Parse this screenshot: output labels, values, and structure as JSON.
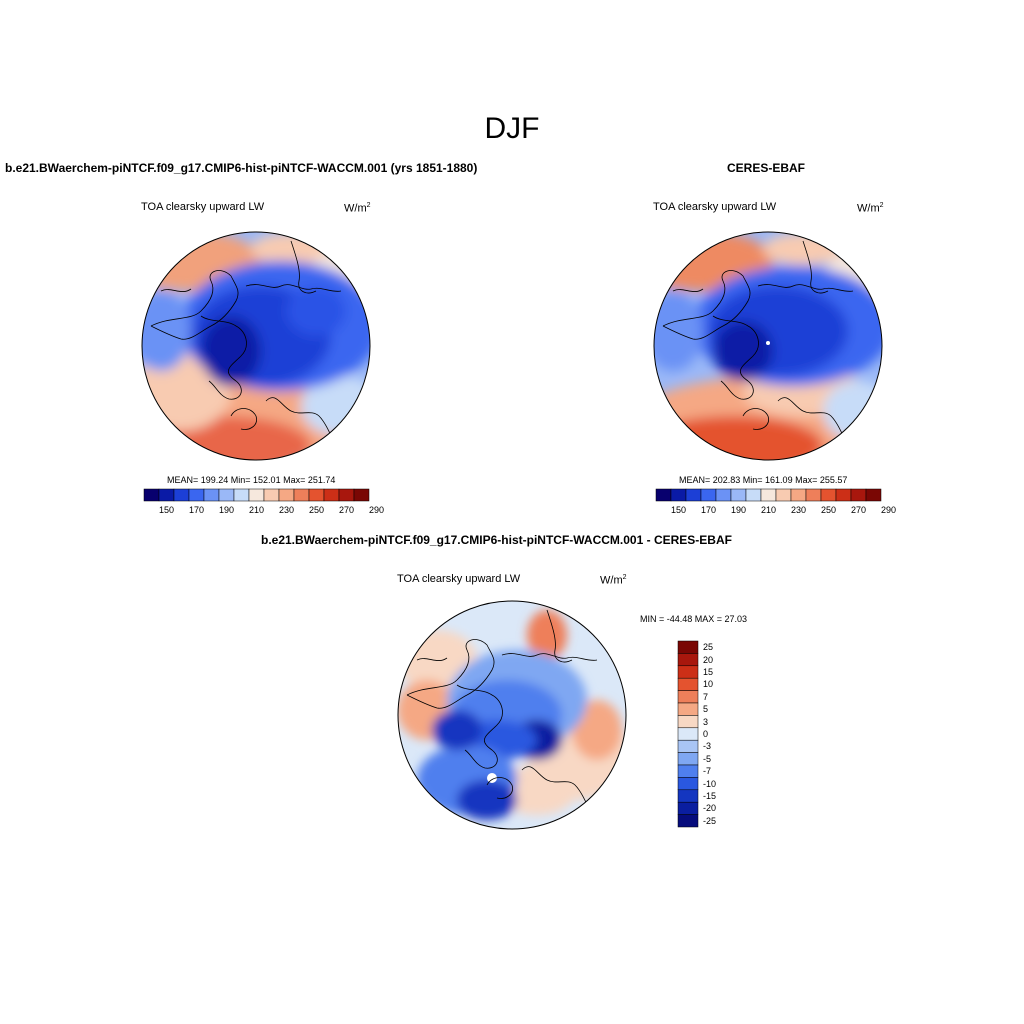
{
  "season": "DJF",
  "panels": {
    "model": {
      "title": "b.e21.BWaerchem-piNTCF.f09_g17.CMIP6-hist-piNTCF-WACCM.001 (yrs 1851-1880)",
      "variable": "TOA clearsky upward LW",
      "units": "W/m",
      "units_exp": "2",
      "stats": "MEAN= 199.24  Min= 152.01  Max= 251.74"
    },
    "obs": {
      "title": "CERES-EBAF",
      "variable": "TOA clearsky upward LW",
      "units": "W/m",
      "units_exp": "2",
      "stats": "MEAN= 202.83  Min= 161.09  Max= 255.57"
    },
    "diff": {
      "title": "b.e21.BWaerchem-piNTCF.f09_g17.CMIP6-hist-piNTCF-WACCM.001 - CERES-EBAF",
      "variable": "TOA clearsky upward LW",
      "units": "W/m",
      "units_exp": "2",
      "stats": "MIN = -44.48 MAX =  27.03"
    }
  },
  "colorbar_abs": {
    "colors": [
      "#08006e",
      "#0a1aa6",
      "#1c3fd6",
      "#3a66f0",
      "#6b92f5",
      "#9ab8f7",
      "#c7dcf8",
      "#f6e8dd",
      "#f8cbb1",
      "#f5a884",
      "#ee7f5a",
      "#e4532f",
      "#cc2f17",
      "#a8170d",
      "#7a0704"
    ],
    "tick_labels": [
      "150",
      "170",
      "190",
      "210",
      "230",
      "250",
      "270",
      "290"
    ]
  },
  "colorbar_diff": {
    "colors": [
      "#7a0704",
      "#a8170d",
      "#cc2f17",
      "#e4532f",
      "#ee7f5a",
      "#f5a884",
      "#f8d8c4",
      "#dbe8f8",
      "#a9c5f5",
      "#7fa7f2",
      "#4f7fee",
      "#2a58e0",
      "#1436c0",
      "#0a1ea0",
      "#060c7c"
    ],
    "tick_labels": [
      "25",
      "20",
      "15",
      "10",
      "7",
      "5",
      "3",
      "0",
      "-3",
      "-5",
      "-7",
      "-10",
      "-15",
      "-20",
      "-25"
    ]
  }
}
